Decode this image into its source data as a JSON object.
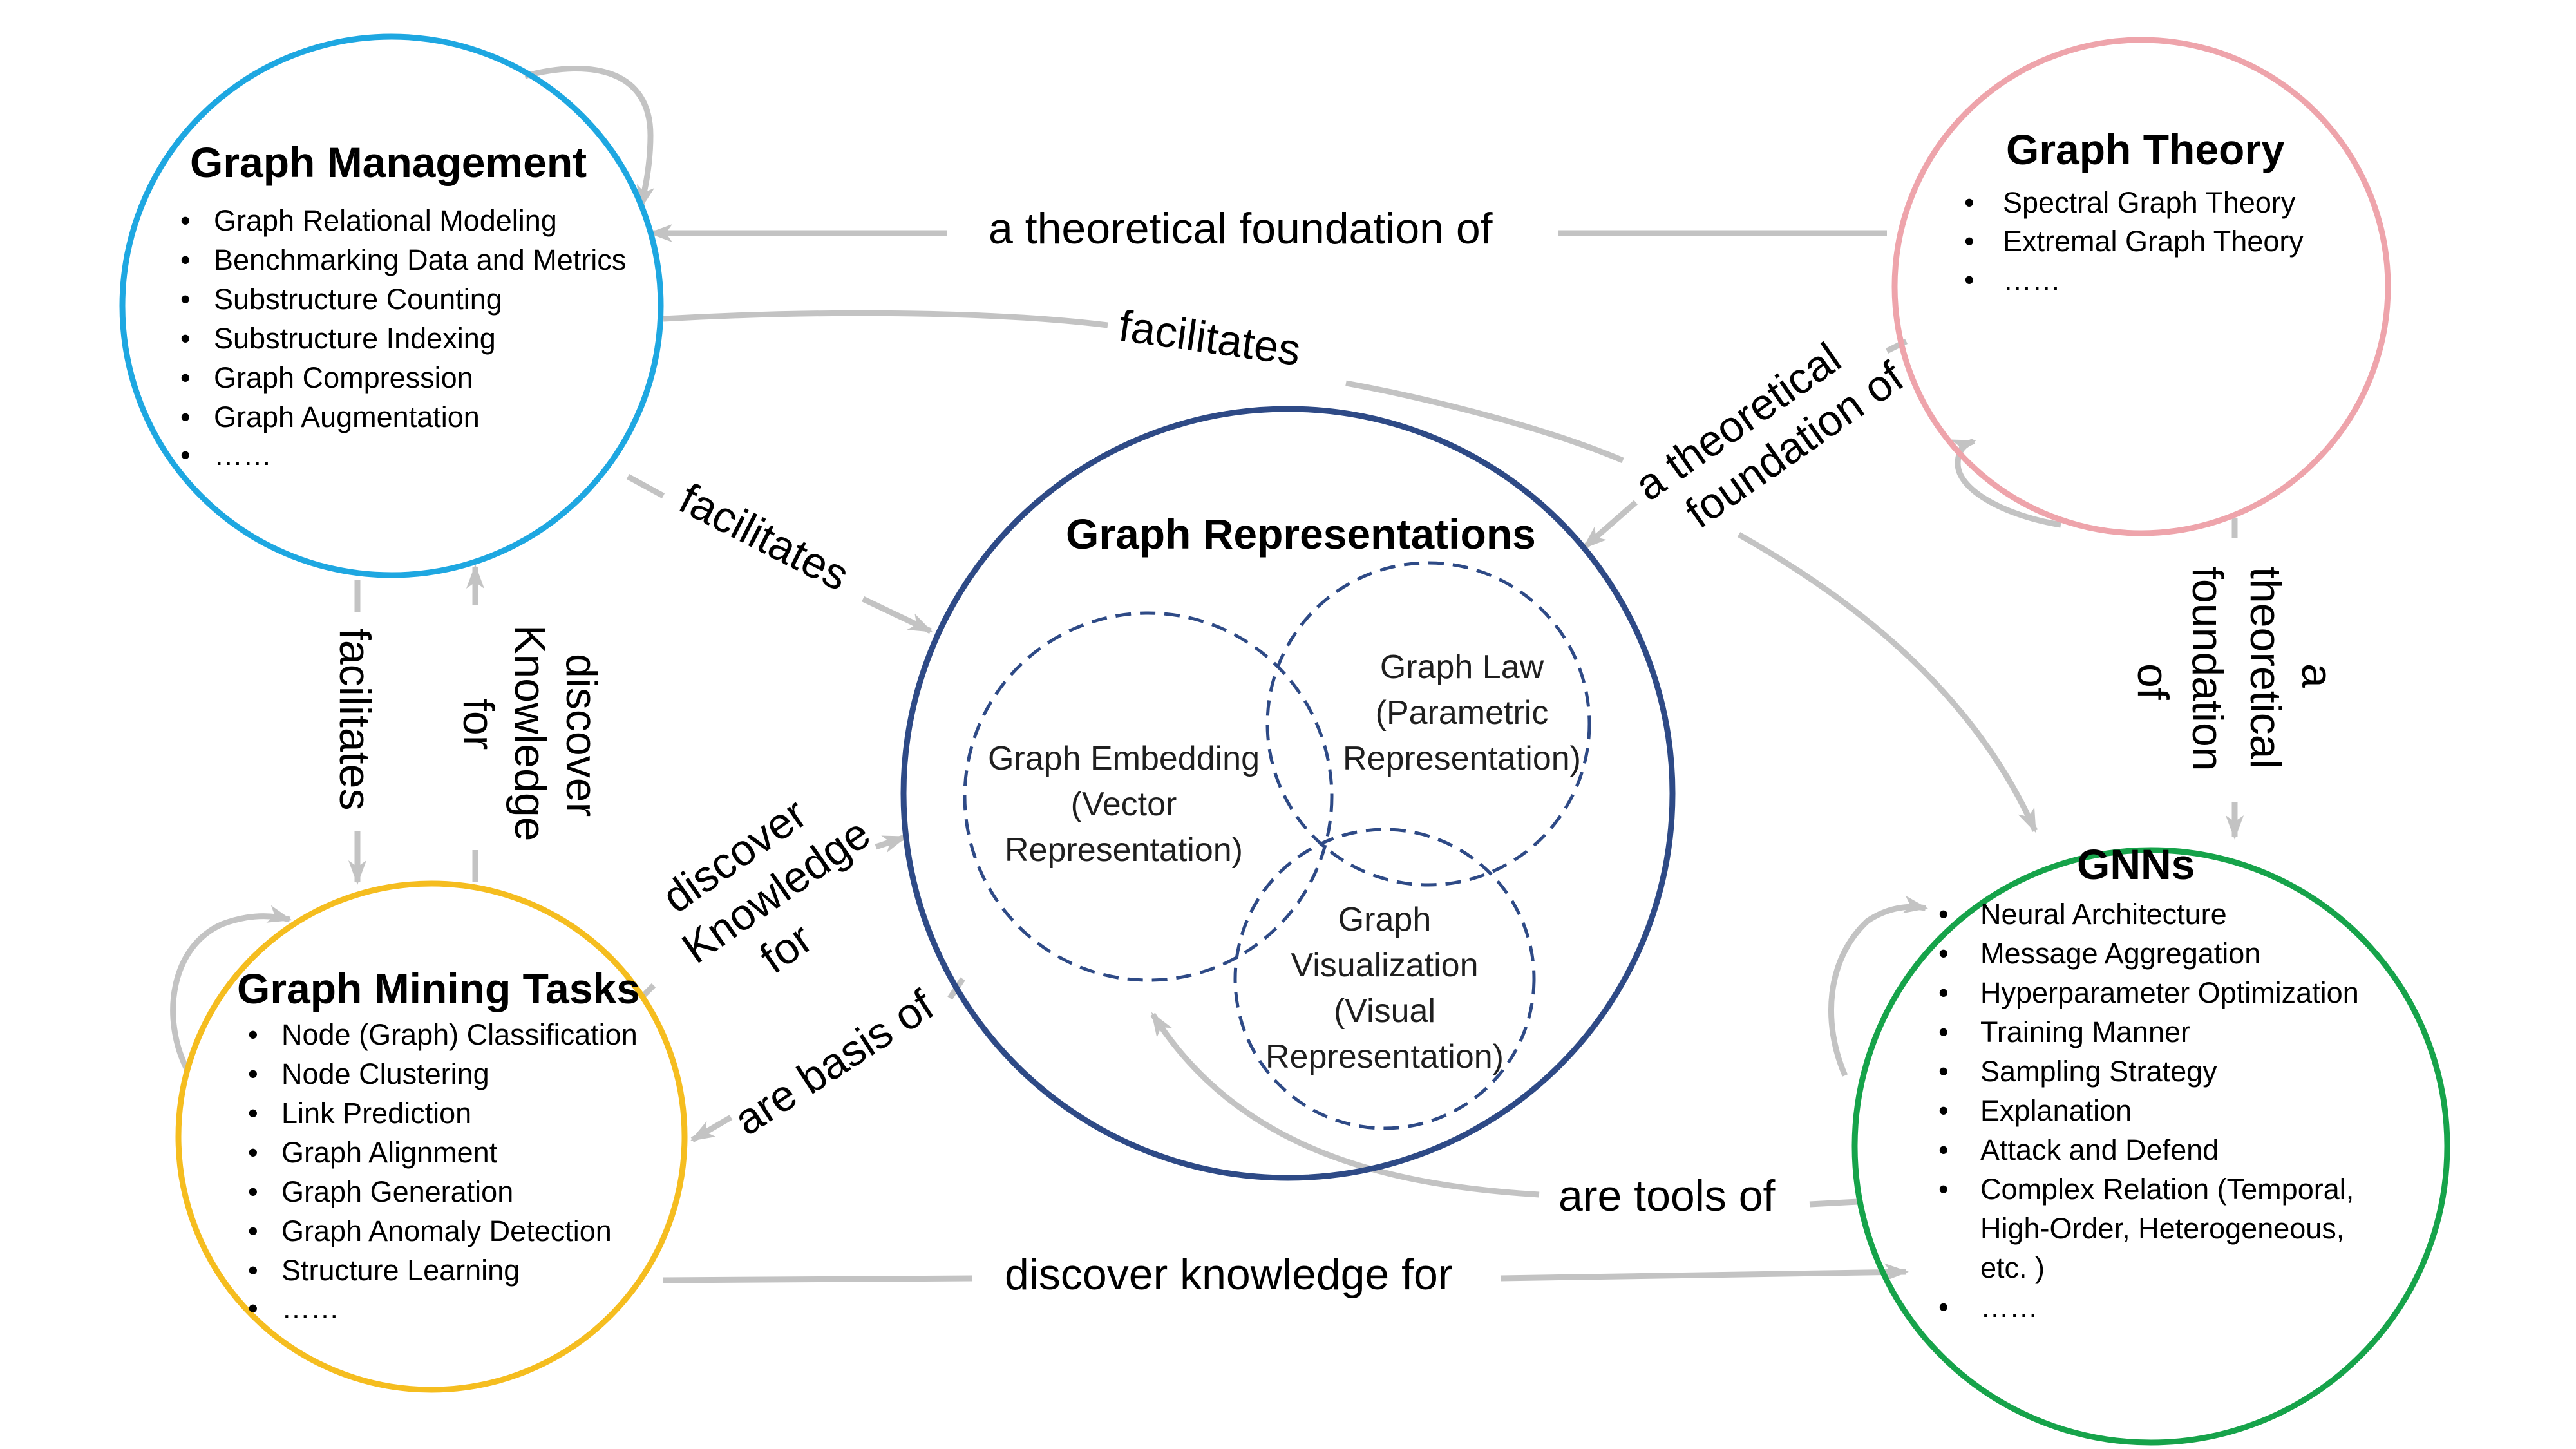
{
  "nodes": {
    "graph_management": {
      "title": "Graph Management",
      "items": [
        "Graph Relational Modeling",
        "Benchmarking Data and Metrics",
        "Substructure Counting",
        "Substructure Indexing",
        "Graph Compression",
        "Graph Augmentation",
        "……"
      ],
      "color": "#1ea7e1"
    },
    "graph_theory": {
      "title": "Graph Theory",
      "items": [
        "Spectral Graph Theory",
        "Extremal Graph Theory",
        "……"
      ],
      "color": "#eea4ab"
    },
    "graph_mining_tasks": {
      "title": "Graph Mining Tasks",
      "items": [
        "Node (Graph) Classification",
        "Node Clustering",
        "Link Prediction",
        "Graph Alignment",
        "Graph Generation",
        "Graph Anomaly Detection",
        "Structure Learning",
        "……"
      ],
      "color": "#f5bd1f"
    },
    "gnns": {
      "title": "GNNs",
      "items": [
        "Neural Architecture",
        "Message Aggregation",
        "Hyperparameter Optimization",
        "Training Manner",
        "Sampling Strategy",
        "Explanation",
        "Attack and Defend",
        "Complex Relation (Temporal,",
        "High-Order, Heterogeneous,",
        "etc. )",
        "……"
      ],
      "bullet_lines": [
        0,
        1,
        2,
        3,
        4,
        5,
        6,
        7,
        10
      ],
      "color": "#16a34a"
    },
    "graph_representations": {
      "title": "Graph Representations",
      "color": "#2e4a86",
      "embedding": [
        "Graph Embedding",
        "(Vector",
        "Representation)"
      ],
      "law": [
        "Graph Law",
        "(Parametric",
        "Representation)"
      ],
      "visualization": [
        "Graph",
        "Visualization",
        "(Visual",
        "Representation)"
      ]
    }
  },
  "edges": {
    "theory_to_management": "a theoretical foundation of",
    "management_facilitates_gnn": "facilitates",
    "theory_to_representations": [
      "a theoretical",
      "foundation of"
    ],
    "management_facilitates_representations": "facilitates",
    "management_facilitates_mining": "facilitates",
    "mining_discovers_management": [
      "discover",
      "Knowledge",
      "for"
    ],
    "mining_discovers_representations": [
      "discover",
      "Knowledge",
      "for"
    ],
    "theory_to_gnns": [
      "a",
      "theoretical",
      "foundation",
      "of"
    ],
    "representations_basis_mining": "are basis of",
    "gnns_tools_representations": "are tools of",
    "mining_discover_gnns": "discover knowledge for"
  }
}
